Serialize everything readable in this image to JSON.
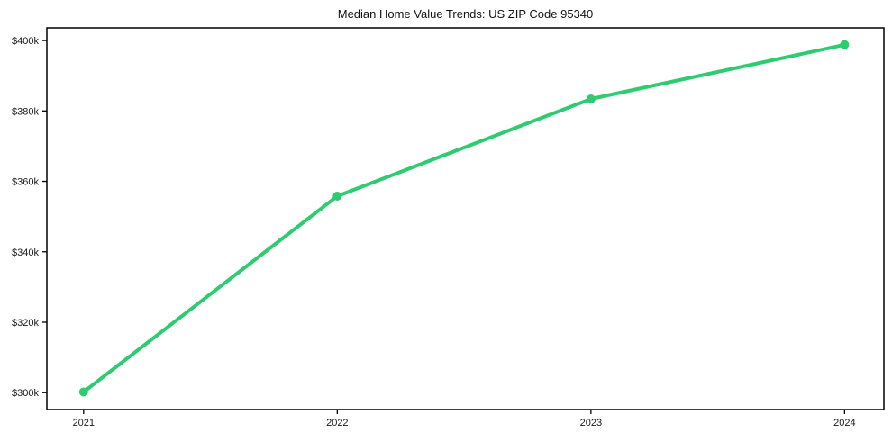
{
  "chart_data": {
    "type": "line",
    "title": "Median Home Value Trends: US ZIP Code 95340",
    "xlabel": "",
    "ylabel": "",
    "x": [
      2021,
      2022,
      2023,
      2024
    ],
    "x_tick_labels": [
      "2021",
      "2022",
      "2023",
      "2024"
    ],
    "series": [
      {
        "values": [
          300200,
          355800,
          383400,
          398800
        ],
        "color": "#2ecc71",
        "marker": "circle"
      }
    ],
    "y_ticks": [
      300000,
      320000,
      340000,
      360000,
      380000,
      400000
    ],
    "y_tick_labels": [
      "$300k",
      "$320k",
      "$340k",
      "$360k",
      "$380k",
      "$400k"
    ],
    "xlim": [
      2020.855,
      2024.155
    ],
    "ylim": [
      295200,
      403600
    ],
    "grid": false,
    "legend": false,
    "background": "#ffffff",
    "axis_color": "#000000",
    "text_color": "#1a1a1a"
  }
}
